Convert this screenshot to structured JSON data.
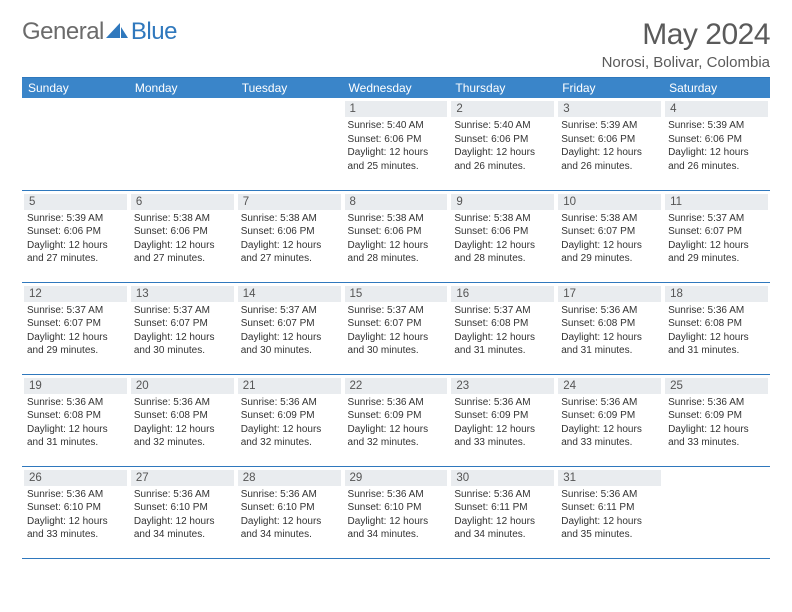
{
  "logo": {
    "word1": "General",
    "word2": "Blue"
  },
  "title": "May 2024",
  "location": "Norosi, Bolivar, Colombia",
  "colors": {
    "header_bg": "#3a85c9",
    "border": "#2f78bd",
    "daynum_bg": "#e9ecef",
    "page_bg": "#ffffff",
    "text": "#333333",
    "title_text": "#5a5a5a"
  },
  "weekdays": [
    "Sunday",
    "Monday",
    "Tuesday",
    "Wednesday",
    "Thursday",
    "Friday",
    "Saturday"
  ],
  "weeks": [
    [
      {
        "day": "",
        "sunrise": "",
        "sunset": "",
        "daylight": ""
      },
      {
        "day": "",
        "sunrise": "",
        "sunset": "",
        "daylight": ""
      },
      {
        "day": "",
        "sunrise": "",
        "sunset": "",
        "daylight": ""
      },
      {
        "day": "1",
        "sunrise": "Sunrise: 5:40 AM",
        "sunset": "Sunset: 6:06 PM",
        "daylight": "Daylight: 12 hours and 25 minutes."
      },
      {
        "day": "2",
        "sunrise": "Sunrise: 5:40 AM",
        "sunset": "Sunset: 6:06 PM",
        "daylight": "Daylight: 12 hours and 26 minutes."
      },
      {
        "day": "3",
        "sunrise": "Sunrise: 5:39 AM",
        "sunset": "Sunset: 6:06 PM",
        "daylight": "Daylight: 12 hours and 26 minutes."
      },
      {
        "day": "4",
        "sunrise": "Sunrise: 5:39 AM",
        "sunset": "Sunset: 6:06 PM",
        "daylight": "Daylight: 12 hours and 26 minutes."
      }
    ],
    [
      {
        "day": "5",
        "sunrise": "Sunrise: 5:39 AM",
        "sunset": "Sunset: 6:06 PM",
        "daylight": "Daylight: 12 hours and 27 minutes."
      },
      {
        "day": "6",
        "sunrise": "Sunrise: 5:38 AM",
        "sunset": "Sunset: 6:06 PM",
        "daylight": "Daylight: 12 hours and 27 minutes."
      },
      {
        "day": "7",
        "sunrise": "Sunrise: 5:38 AM",
        "sunset": "Sunset: 6:06 PM",
        "daylight": "Daylight: 12 hours and 27 minutes."
      },
      {
        "day": "8",
        "sunrise": "Sunrise: 5:38 AM",
        "sunset": "Sunset: 6:06 PM",
        "daylight": "Daylight: 12 hours and 28 minutes."
      },
      {
        "day": "9",
        "sunrise": "Sunrise: 5:38 AM",
        "sunset": "Sunset: 6:06 PM",
        "daylight": "Daylight: 12 hours and 28 minutes."
      },
      {
        "day": "10",
        "sunrise": "Sunrise: 5:38 AM",
        "sunset": "Sunset: 6:07 PM",
        "daylight": "Daylight: 12 hours and 29 minutes."
      },
      {
        "day": "11",
        "sunrise": "Sunrise: 5:37 AM",
        "sunset": "Sunset: 6:07 PM",
        "daylight": "Daylight: 12 hours and 29 minutes."
      }
    ],
    [
      {
        "day": "12",
        "sunrise": "Sunrise: 5:37 AM",
        "sunset": "Sunset: 6:07 PM",
        "daylight": "Daylight: 12 hours and 29 minutes."
      },
      {
        "day": "13",
        "sunrise": "Sunrise: 5:37 AM",
        "sunset": "Sunset: 6:07 PM",
        "daylight": "Daylight: 12 hours and 30 minutes."
      },
      {
        "day": "14",
        "sunrise": "Sunrise: 5:37 AM",
        "sunset": "Sunset: 6:07 PM",
        "daylight": "Daylight: 12 hours and 30 minutes."
      },
      {
        "day": "15",
        "sunrise": "Sunrise: 5:37 AM",
        "sunset": "Sunset: 6:07 PM",
        "daylight": "Daylight: 12 hours and 30 minutes."
      },
      {
        "day": "16",
        "sunrise": "Sunrise: 5:37 AM",
        "sunset": "Sunset: 6:08 PM",
        "daylight": "Daylight: 12 hours and 31 minutes."
      },
      {
        "day": "17",
        "sunrise": "Sunrise: 5:36 AM",
        "sunset": "Sunset: 6:08 PM",
        "daylight": "Daylight: 12 hours and 31 minutes."
      },
      {
        "day": "18",
        "sunrise": "Sunrise: 5:36 AM",
        "sunset": "Sunset: 6:08 PM",
        "daylight": "Daylight: 12 hours and 31 minutes."
      }
    ],
    [
      {
        "day": "19",
        "sunrise": "Sunrise: 5:36 AM",
        "sunset": "Sunset: 6:08 PM",
        "daylight": "Daylight: 12 hours and 31 minutes."
      },
      {
        "day": "20",
        "sunrise": "Sunrise: 5:36 AM",
        "sunset": "Sunset: 6:08 PM",
        "daylight": "Daylight: 12 hours and 32 minutes."
      },
      {
        "day": "21",
        "sunrise": "Sunrise: 5:36 AM",
        "sunset": "Sunset: 6:09 PM",
        "daylight": "Daylight: 12 hours and 32 minutes."
      },
      {
        "day": "22",
        "sunrise": "Sunrise: 5:36 AM",
        "sunset": "Sunset: 6:09 PM",
        "daylight": "Daylight: 12 hours and 32 minutes."
      },
      {
        "day": "23",
        "sunrise": "Sunrise: 5:36 AM",
        "sunset": "Sunset: 6:09 PM",
        "daylight": "Daylight: 12 hours and 33 minutes."
      },
      {
        "day": "24",
        "sunrise": "Sunrise: 5:36 AM",
        "sunset": "Sunset: 6:09 PM",
        "daylight": "Daylight: 12 hours and 33 minutes."
      },
      {
        "day": "25",
        "sunrise": "Sunrise: 5:36 AM",
        "sunset": "Sunset: 6:09 PM",
        "daylight": "Daylight: 12 hours and 33 minutes."
      }
    ],
    [
      {
        "day": "26",
        "sunrise": "Sunrise: 5:36 AM",
        "sunset": "Sunset: 6:10 PM",
        "daylight": "Daylight: 12 hours and 33 minutes."
      },
      {
        "day": "27",
        "sunrise": "Sunrise: 5:36 AM",
        "sunset": "Sunset: 6:10 PM",
        "daylight": "Daylight: 12 hours and 34 minutes."
      },
      {
        "day": "28",
        "sunrise": "Sunrise: 5:36 AM",
        "sunset": "Sunset: 6:10 PM",
        "daylight": "Daylight: 12 hours and 34 minutes."
      },
      {
        "day": "29",
        "sunrise": "Sunrise: 5:36 AM",
        "sunset": "Sunset: 6:10 PM",
        "daylight": "Daylight: 12 hours and 34 minutes."
      },
      {
        "day": "30",
        "sunrise": "Sunrise: 5:36 AM",
        "sunset": "Sunset: 6:11 PM",
        "daylight": "Daylight: 12 hours and 34 minutes."
      },
      {
        "day": "31",
        "sunrise": "Sunrise: 5:36 AM",
        "sunset": "Sunset: 6:11 PM",
        "daylight": "Daylight: 12 hours and 35 minutes."
      },
      {
        "day": "",
        "sunrise": "",
        "sunset": "",
        "daylight": ""
      }
    ]
  ]
}
